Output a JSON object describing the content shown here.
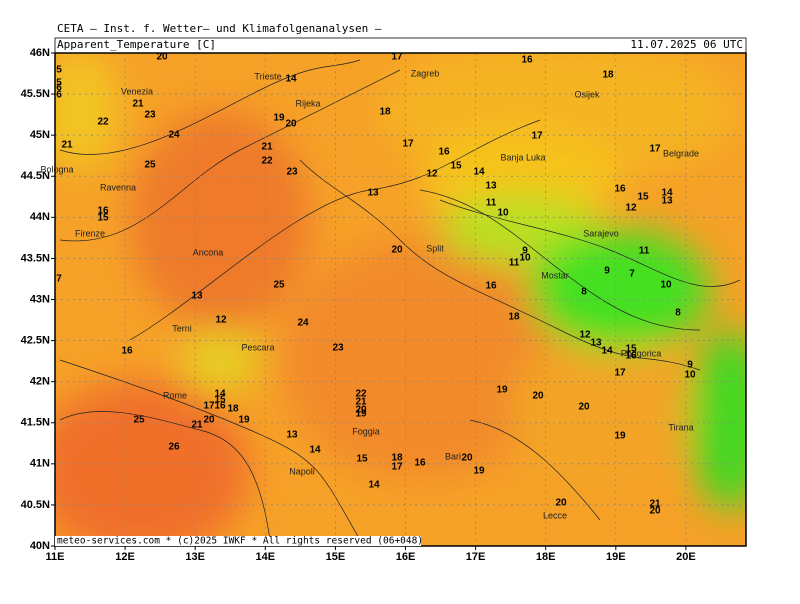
{
  "header": {
    "org": "CETA — Inst. f. Wetter— und Klimafolgenanalysen —",
    "field": "Apparent_Temperature [C]",
    "time": "11.07.2025 06 UTC"
  },
  "footer": "meteo-services.com * (c)2025 IWKF * All rights reserved (06+048)",
  "map": {
    "lat_ticks": [
      {
        "value": 46,
        "label": "46N"
      },
      {
        "value": 45.5,
        "label": "45.5N"
      },
      {
        "value": 45,
        "label": "45N"
      },
      {
        "value": 44.5,
        "label": "44.5N"
      },
      {
        "value": 44,
        "label": "44N"
      },
      {
        "value": 43.5,
        "label": "43.5N"
      },
      {
        "value": 43,
        "label": "43N"
      },
      {
        "value": 42.5,
        "label": "42.5N"
      },
      {
        "value": 42,
        "label": "42N"
      },
      {
        "value": 41.5,
        "label": "41.5N"
      },
      {
        "value": 41,
        "label": "41N"
      },
      {
        "value": 40.5,
        "label": "40.5N"
      },
      {
        "value": 40,
        "label": "40N"
      }
    ],
    "lon_ticks": [
      {
        "value": 11,
        "label": "11E"
      },
      {
        "value": 12,
        "label": "12E"
      },
      {
        "value": 13,
        "label": "13E"
      },
      {
        "value": 14,
        "label": "14E"
      },
      {
        "value": 15,
        "label": "15E"
      },
      {
        "value": 16,
        "label": "16E"
      },
      {
        "value": 17,
        "label": "17E"
      },
      {
        "value": 18,
        "label": "18E"
      },
      {
        "value": 19,
        "label": "19E"
      },
      {
        "value": 20,
        "label": "20E"
      }
    ],
    "cities": [
      "Venezia",
      "Trieste",
      "Zagreb",
      "Osijek",
      "Rijeka",
      "Bologna",
      "Ravenna",
      "Firenze",
      "Ancona",
      "Banja Luka",
      "Belgrade",
      "Sarajevo",
      "Split",
      "Mostar",
      "Podgorica",
      "Pescara",
      "Terni",
      "Rome",
      "Foggia",
      "Napoli",
      "Bari",
      "Tirana",
      "Lecce"
    ],
    "contour_labels": [
      20,
      17,
      16,
      18,
      14,
      21,
      23,
      19,
      20,
      22,
      24,
      18,
      17,
      17,
      17,
      16,
      21,
      21,
      15,
      14,
      22,
      25,
      23,
      12,
      13,
      13,
      16,
      15,
      14,
      13,
      11,
      10,
      12,
      16,
      15,
      20,
      9,
      11,
      10,
      11,
      9,
      7,
      7,
      25,
      16,
      10,
      8,
      13,
      8,
      18,
      12,
      24,
      12,
      13,
      14,
      15,
      16,
      16,
      23,
      9,
      10,
      17,
      19,
      22,
      21,
      14,
      15,
      16,
      20,
      17,
      18,
      19,
      20,
      20,
      19,
      20,
      21,
      25,
      13,
      19,
      26,
      14,
      15,
      18,
      17,
      16,
      20,
      19,
      14,
      20,
      21,
      20,
      5,
      5,
      6,
      6
    ]
  }
}
